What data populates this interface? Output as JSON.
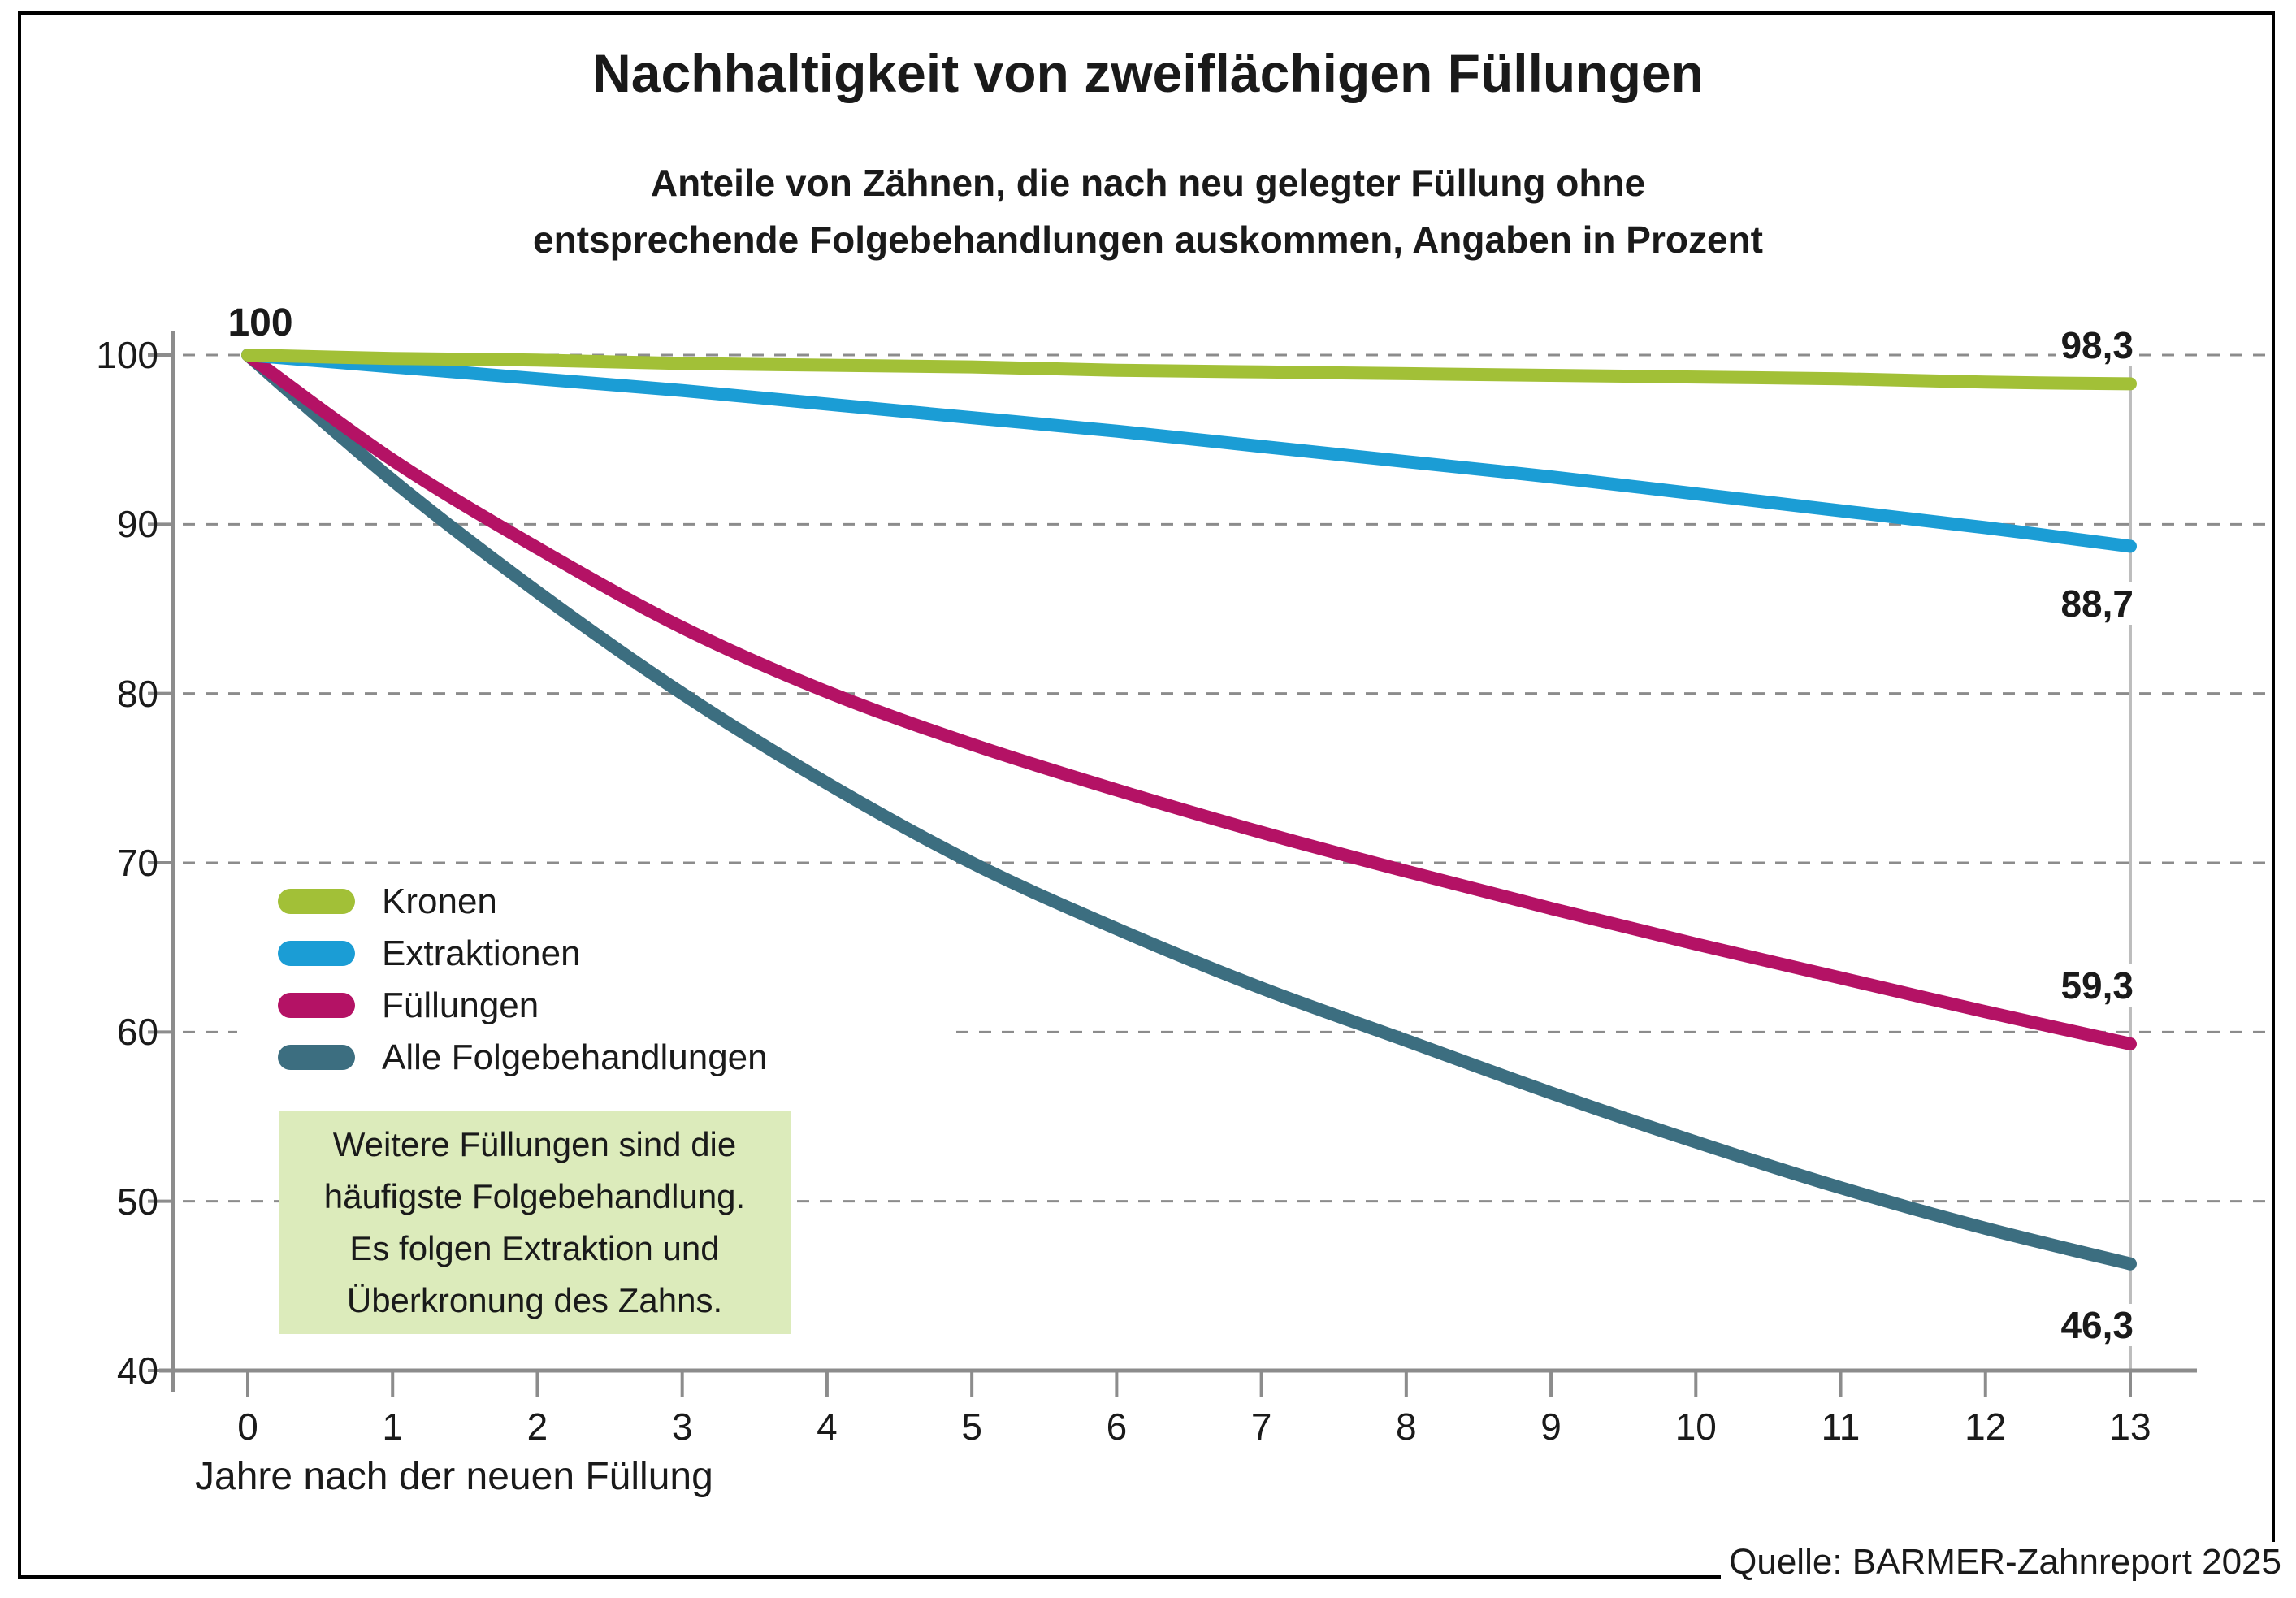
{
  "page": {
    "source": "Quelle: BARMER-Zahnreport 2025"
  },
  "chart_data": {
    "type": "line",
    "title": "Nachhaltigkeit von zweiflächigen Füllungen",
    "subtitle_lines": [
      "Anteile von Zähnen, die nach neu gelegter Füllung ohne",
      "entsprechende Folgebehandlungen auskommen, Angaben in Prozent"
    ],
    "xlabel": "Jahre nach der neuen Füllung",
    "x": [
      0,
      1,
      2,
      3,
      4,
      5,
      6,
      7,
      8,
      9,
      10,
      11,
      12,
      13
    ],
    "ylim": [
      40,
      100
    ],
    "yticks": [
      100,
      90,
      80,
      70,
      60,
      50,
      40
    ],
    "grid": "horizontal dashed",
    "legend_position": "inside middle-left",
    "start_label": "100",
    "series": [
      {
        "name": "Kronen",
        "color": "#a2c037",
        "end_label": "98,3",
        "values": [
          100,
          99.8,
          99.7,
          99.5,
          99.4,
          99.3,
          99.1,
          99.0,
          98.9,
          98.8,
          98.7,
          98.6,
          98.4,
          98.3
        ]
      },
      {
        "name": "Extraktionen",
        "color": "#1b9dd5",
        "end_label": "88,7",
        "values": [
          100,
          99.3,
          98.6,
          97.9,
          97.1,
          96.3,
          95.5,
          94.6,
          93.7,
          92.8,
          91.8,
          90.8,
          89.8,
          88.7
        ]
      },
      {
        "name": "Füllungen",
        "color": "#b41265",
        "end_label": "59,3",
        "values": [
          100,
          93.8,
          88.6,
          83.9,
          80.1,
          77.0,
          74.3,
          71.8,
          69.5,
          67.3,
          65.2,
          63.2,
          61.2,
          59.3
        ]
      },
      {
        "name": "Alle Folgebehandlungen",
        "color": "#3c6e80",
        "end_label": "46,3",
        "values": [
          100,
          92.6,
          86.0,
          80.0,
          74.7,
          70.0,
          66.1,
          62.6,
          59.5,
          56.4,
          53.5,
          50.8,
          48.4,
          46.3
        ]
      }
    ],
    "annotation": {
      "bg_color": "#dcebbb",
      "lines": [
        "Weitere Füllungen sind die",
        "häufigste Folgebehandlung.",
        "Es folgen Extraktion und",
        "Überkronung des Zahns."
      ]
    },
    "colors": {
      "axis": "#8c8c8c",
      "grid": "#8c8c8c",
      "end_marker_line": "#bdbdbd",
      "text": "#1a1a1a"
    }
  }
}
